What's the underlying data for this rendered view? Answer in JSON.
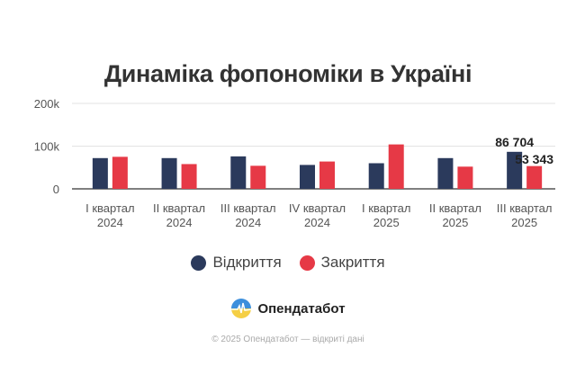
{
  "chart_data": {
    "type": "bar",
    "title": "Динаміка фопономіки в Україні",
    "xlabel": "",
    "ylabel": "",
    "ylim": [
      0,
      200000
    ],
    "yticks": [
      0,
      100000,
      200000
    ],
    "ytick_labels": [
      "0",
      "100k",
      "200k"
    ],
    "grid": true,
    "categories": [
      [
        "I квартал",
        "2024"
      ],
      [
        "II квартал",
        "2024"
      ],
      [
        "III квартал",
        "2024"
      ],
      [
        "IV квартал",
        "2024"
      ],
      [
        "I квартал",
        "2025"
      ],
      [
        "II квартал",
        "2025"
      ],
      [
        "III квартал",
        "2025"
      ]
    ],
    "series": [
      {
        "name": "Відкриття",
        "color": "#2b3a5c",
        "values": [
          72000,
          72000,
          76000,
          56000,
          60000,
          72000,
          86704
        ]
      },
      {
        "name": "Закриття",
        "color": "#e63946",
        "values": [
          75000,
          58000,
          54000,
          64000,
          104000,
          52000,
          53343
        ]
      }
    ],
    "data_labels": [
      {
        "series": 0,
        "index": 6,
        "text": "86 704"
      },
      {
        "series": 1,
        "index": 6,
        "text": "53 343"
      }
    ],
    "legend_position": "bottom"
  },
  "brand": {
    "name": "Опендатабот",
    "logo_icon": "opendatabot-logo-icon"
  },
  "footer": {
    "text": "© 2025 Опендатабот — відкриті дані"
  }
}
